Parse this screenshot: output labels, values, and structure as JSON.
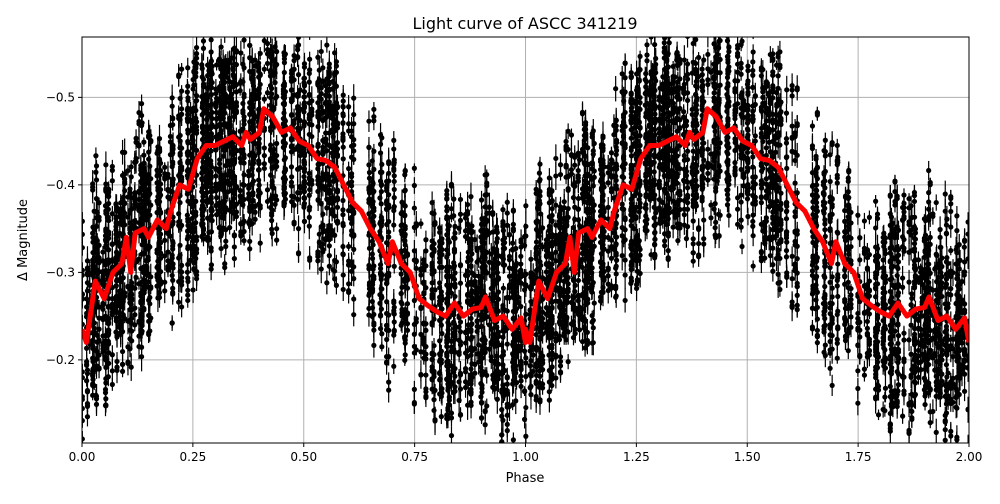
{
  "chart_data": {
    "type": "scatter",
    "title": "Light curve of ASCC 341219",
    "xlabel": "Phase",
    "ylabel": "Δ Magnitude",
    "xlim": [
      0.0,
      2.0
    ],
    "ylim": [
      -0.569,
      -0.105
    ],
    "y_inverted": true,
    "grid": true,
    "xticks": [
      "0.00",
      "0.25",
      "0.50",
      "0.75",
      "1.00",
      "1.25",
      "1.50",
      "1.75",
      "2.00"
    ],
    "yticks": [
      "−0.5",
      "−0.4",
      "−0.3",
      "−0.2"
    ],
    "ytick_values": [
      -0.5,
      -0.4,
      -0.3,
      -0.2
    ],
    "colors": {
      "points": "#000000",
      "binned_curve": "#ff0000",
      "grid": "#b0b0b0"
    },
    "series": [
      {
        "kind": "errorbar-points",
        "color": "#000000"
      },
      {
        "kind": "binned-line",
        "color": "#ff0000",
        "repeat_period": 1.0,
        "x": [
          0.0,
          0.01,
          0.03,
          0.05,
          0.07,
          0.09,
          0.1,
          0.11,
          0.12,
          0.14,
          0.15,
          0.17,
          0.19,
          0.2,
          0.22,
          0.24,
          0.26,
          0.28,
          0.3,
          0.32,
          0.34,
          0.36,
          0.37,
          0.38,
          0.4,
          0.41,
          0.43,
          0.45,
          0.47,
          0.49,
          0.51,
          0.53,
          0.55,
          0.57,
          0.59,
          0.61,
          0.63,
          0.65,
          0.67,
          0.69,
          0.7,
          0.72,
          0.74,
          0.76,
          0.78,
          0.8,
          0.82,
          0.84,
          0.86,
          0.88,
          0.9,
          0.91,
          0.93,
          0.95,
          0.97,
          0.99,
          1.0
        ],
        "y": [
          -0.235,
          -0.22,
          -0.29,
          -0.27,
          -0.3,
          -0.31,
          -0.34,
          -0.3,
          -0.345,
          -0.35,
          -0.34,
          -0.36,
          -0.35,
          -0.37,
          -0.4,
          -0.395,
          -0.43,
          -0.445,
          -0.445,
          -0.45,
          -0.455,
          -0.445,
          -0.46,
          -0.452,
          -0.46,
          -0.487,
          -0.478,
          -0.46,
          -0.465,
          -0.45,
          -0.445,
          -0.43,
          -0.428,
          -0.42,
          -0.4,
          -0.38,
          -0.37,
          -0.35,
          -0.335,
          -0.31,
          -0.335,
          -0.31,
          -0.3,
          -0.27,
          -0.262,
          -0.255,
          -0.25,
          -0.265,
          -0.25,
          -0.258,
          -0.26,
          -0.272,
          -0.245,
          -0.25,
          -0.235,
          -0.248,
          -0.22
        ]
      }
    ]
  }
}
